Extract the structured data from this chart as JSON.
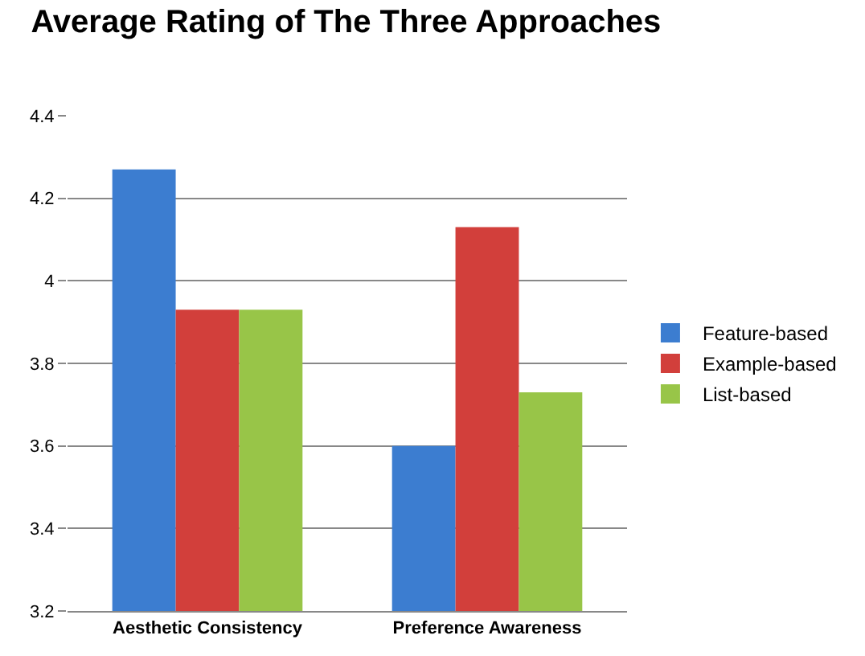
{
  "chart_data": {
    "type": "bar",
    "title": "Average Rating of The Three Approaches",
    "categories": [
      "Aesthetic Consistency",
      "Preference Awareness"
    ],
    "series": [
      {
        "name": "Feature-based",
        "color": "#3c7dd0",
        "values": [
          4.27,
          3.6
        ]
      },
      {
        "name": "Example-based",
        "color": "#d23f3b",
        "values": [
          3.93,
          4.13
        ]
      },
      {
        "name": "List-based",
        "color": "#98c548",
        "values": [
          3.93,
          3.73
        ]
      }
    ],
    "ylim": [
      3.2,
      4.4
    ],
    "yticks": [
      3.2,
      3.4,
      3.6,
      3.8,
      4,
      4.2,
      4.4
    ],
    "grid": "y",
    "legend": "right"
  }
}
